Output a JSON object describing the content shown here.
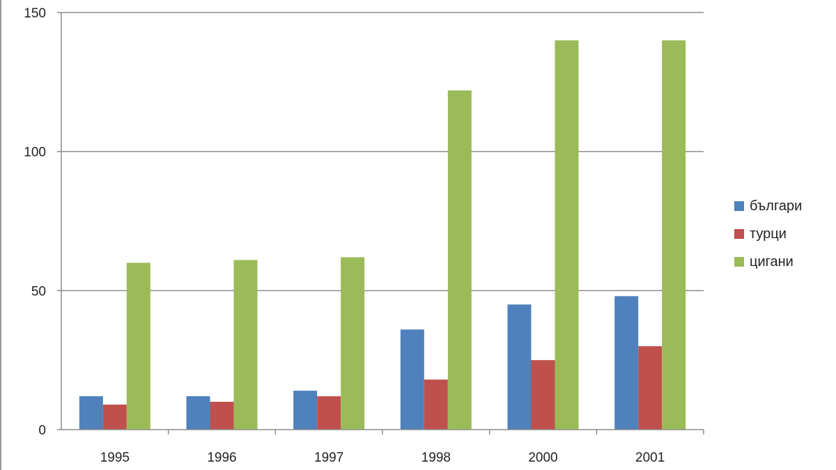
{
  "chart_data": {
    "type": "bar",
    "title": "",
    "xlabel": "",
    "ylabel": "",
    "categories": [
      "1995",
      "1996",
      "1997",
      "1998",
      "2000",
      "2001"
    ],
    "series": [
      {
        "name": "българи",
        "color": "#4F81BD",
        "values": [
          12,
          12,
          14,
          36,
          45,
          48
        ]
      },
      {
        "name": "турци",
        "color": "#C0504D",
        "values": [
          9,
          10,
          12,
          18,
          25,
          30
        ]
      },
      {
        "name": "цигани",
        "color": "#9BBB59",
        "values": [
          60,
          61,
          62,
          122,
          140,
          140
        ]
      }
    ],
    "ylim": [
      0,
      150
    ],
    "yticks": [
      "0",
      "50",
      "100",
      "150"
    ],
    "grid": true,
    "legend_position": "right"
  }
}
